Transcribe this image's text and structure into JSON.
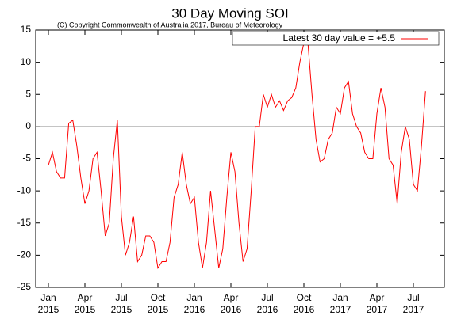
{
  "chart_data": {
    "type": "line",
    "title": "30 Day Moving SOI",
    "subtitle": "(C) Copyright Commonwealth of Australia 2017, Bureau of Meteorology",
    "categories": [
      "Jan 2015",
      null,
      null,
      null,
      null,
      null,
      null,
      null,
      null,
      "Apr 2015",
      null,
      null,
      null,
      null,
      null,
      null,
      null,
      null,
      "Jul 2015",
      null,
      null,
      null,
      null,
      null,
      null,
      null,
      null,
      "Oct 2015",
      null,
      null,
      null,
      null,
      null,
      null,
      null,
      null,
      "Jan 2016",
      null,
      null,
      null,
      null,
      null,
      null,
      null,
      null,
      "Apr 2016",
      null,
      null,
      null,
      null,
      null,
      null,
      null,
      null,
      "Jul 2016",
      null,
      null,
      null,
      null,
      null,
      null,
      null,
      null,
      "Oct 2016",
      null,
      null,
      null,
      null,
      null,
      null,
      null,
      null,
      "Jan 2017",
      null,
      null,
      null,
      null,
      null,
      null,
      null,
      null,
      "Apr 2017",
      null,
      null,
      null,
      null,
      null,
      null,
      null,
      null,
      "Jul 2017",
      null,
      null,
      null
    ],
    "series": [
      {
        "name": "Latest 30 day value = +5.5",
        "color": "#ff0000",
        "values": [
          -6,
          -4,
          -7,
          -8,
          -8,
          0.5,
          1,
          -3,
          -8,
          -12,
          -10,
          -5,
          -4,
          -10,
          -17,
          -15,
          -5,
          1,
          -14,
          -20,
          -18,
          -14,
          -21,
          -20,
          -17,
          -17,
          -18,
          -22,
          -21,
          -21,
          -18,
          -11,
          -9,
          -4,
          -9,
          -12,
          -11,
          -18,
          -22,
          -18,
          -10,
          -16,
          -22,
          -19,
          -11,
          -4,
          -7,
          -15,
          -21,
          -19,
          -10,
          0,
          0,
          5,
          3,
          5,
          3,
          4,
          2.5,
          4,
          4.5,
          6,
          10,
          13,
          13,
          5,
          -2,
          -5.5,
          -5,
          -2,
          -1,
          3,
          2,
          6,
          7,
          2,
          0,
          -1,
          -4,
          -5,
          -5,
          2,
          6,
          3,
          -5,
          -6,
          -12,
          -4,
          0,
          -2,
          -9,
          -10,
          -3,
          5.5
        ]
      }
    ],
    "ylim": [
      -25,
      15
    ],
    "yticks": [
      -25,
      -20,
      -15,
      -10,
      -5,
      0,
      5,
      10,
      15
    ],
    "legend": "upper right"
  }
}
